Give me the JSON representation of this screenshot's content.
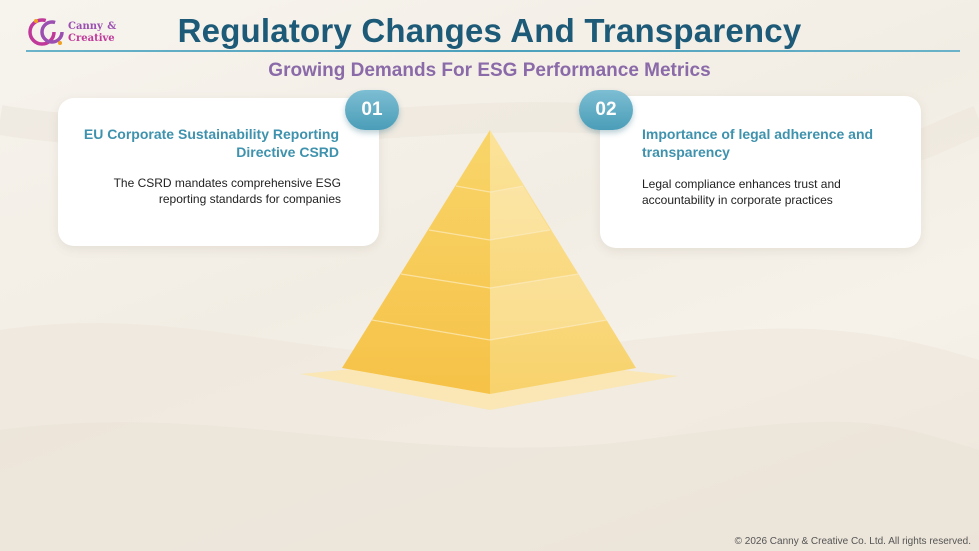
{
  "logo": {
    "line1": "Canny",
    "amp": "&",
    "line2": "Creative"
  },
  "title": "Regulatory Changes And Transparency",
  "subtitle": "Growing Demands For ESG Performance Metrics",
  "cards": [
    {
      "number": "01",
      "heading": "EU Corporate Sustainability Reporting Directive CSRD",
      "body": "The CSRD mandates comprehensive ESG reporting standards for companies"
    },
    {
      "number": "02",
      "heading": "Importance of legal adherence and transparency",
      "body": "Legal compliance enhances trust and accountability in corporate practices"
    }
  ],
  "footer": "© 2026 Canny & Creative Co. Ltd. All rights reserved.",
  "colors": {
    "title": "#1c5a78",
    "subtitle": "#8a6aa8",
    "card_heading": "#3e92ad",
    "badge": "#4a9db8",
    "pyramid": "#f7c94f"
  }
}
